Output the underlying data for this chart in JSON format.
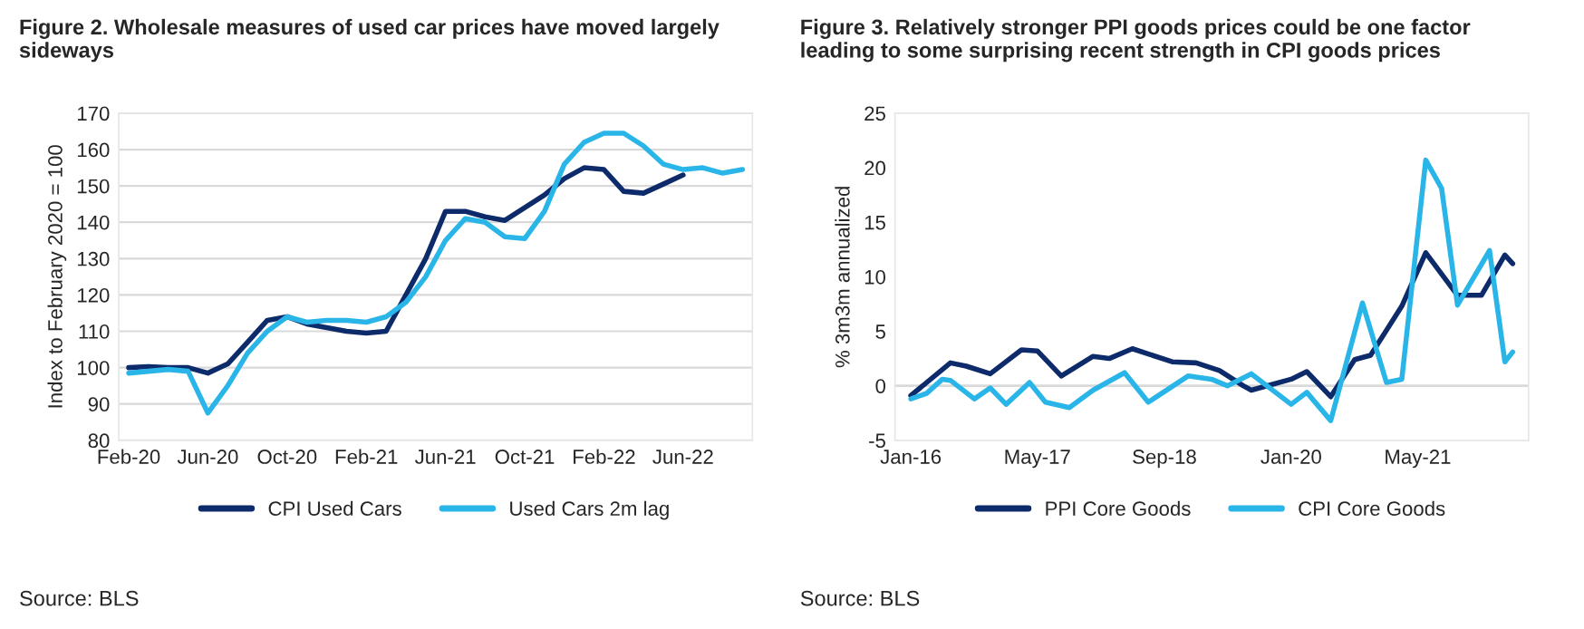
{
  "chart_data": [
    {
      "type": "line",
      "title": "Figure 2. Wholesale measures of used car prices have moved largely\nsideways",
      "ylabel": "Index to February 2020 = 100",
      "categories": [
        "Feb-20",
        null,
        null,
        null,
        "Jun-20",
        null,
        null,
        null,
        "Oct-20",
        null,
        null,
        null,
        "Feb-21",
        null,
        null,
        null,
        "Jun-21",
        null,
        null,
        null,
        "Oct-21",
        null,
        null,
        null,
        "Feb-22",
        null,
        null,
        null,
        "Jun-22",
        null,
        null,
        null
      ],
      "series": [
        {
          "name": "CPI Used Cars",
          "color": "#0d2b6b",
          "values": [
            100,
            100.3,
            100,
            100,
            98.5,
            101,
            107,
            113,
            114,
            112,
            111,
            110,
            109.5,
            110,
            120,
            130,
            143,
            143,
            141.5,
            140.5,
            144,
            147.5,
            152,
            155,
            154.5,
            148.5,
            148,
            150.5,
            153,
            null,
            null,
            null
          ]
        },
        {
          "name": "Used Cars 2m lag",
          "color": "#29b5e8",
          "values": [
            98.5,
            99,
            99.5,
            99,
            87.5,
            95,
            104,
            110,
            114,
            112.5,
            113,
            113,
            112.5,
            114,
            118,
            125,
            135,
            141,
            140,
            136,
            135.5,
            143,
            156,
            162,
            164.5,
            164.5,
            161,
            156,
            154.5,
            155,
            153.5,
            154.5
          ]
        }
      ],
      "ylim": [
        80,
        170
      ],
      "yticks": [
        80,
        90,
        100,
        110,
        120,
        130,
        140,
        150,
        160,
        170
      ],
      "grid": "y",
      "legend": "bottom",
      "annotations": [
        "Source: BLS"
      ]
    },
    {
      "type": "line",
      "title": "Figure 3. Relatively stronger PPI goods prices could be one factor\nleading to some surprising recent strength in CPI goods prices",
      "ylabel": "% 3m3m annualized",
      "series": [
        {
          "name": "PPI Core Goods",
          "color": "#0d2b6b",
          "x": [
            "2016-01",
            "2016-06",
            "2016-08",
            "2016-11",
            "2017-03",
            "2017-05",
            "2017-08",
            "2017-12",
            "2018-02",
            "2018-05",
            "2018-10",
            "2019-01",
            "2019-04",
            "2019-07",
            "2019-08",
            "2020-01",
            "2020-03",
            "2020-06",
            "2020-09",
            "2020-11",
            "2021-03",
            "2021-06",
            "2021-10",
            "2022-01",
            "2022-04",
            "2022-05"
          ],
          "values": [
            -0.9,
            2.1,
            1.8,
            1.1,
            3.3,
            3.2,
            0.9,
            2.7,
            2.5,
            3.4,
            2.2,
            2.1,
            1.4,
            0,
            -0.4,
            0.6,
            1.3,
            -1.0,
            2.4,
            2.8,
            7.3,
            12.2,
            8.3,
            8.3,
            12.0,
            11.2
          ]
        },
        {
          "name": "CPI Core Goods",
          "color": "#29b5e8",
          "x": [
            "2016-01",
            "2016-03",
            "2016-05",
            "2016-06",
            "2016-09",
            "2016-11",
            "2017-01",
            "2017-04",
            "2017-06",
            "2017-09",
            "2017-12",
            "2018-04",
            "2018-07",
            "2018-12",
            "2019-03",
            "2019-05",
            "2019-08",
            "2020-01",
            "2020-03",
            "2020-06",
            "2020-10",
            "2021-01",
            "2021-03",
            "2021-06",
            "2021-08",
            "2021-10",
            "2022-02",
            "2022-04",
            "2022-05"
          ],
          "values": [
            -1.2,
            -0.7,
            0.6,
            0.5,
            -1.2,
            -0.2,
            -1.7,
            0.3,
            -1.5,
            -2.0,
            -0.4,
            1.2,
            -1.5,
            0.9,
            0.6,
            0,
            1.1,
            -1.7,
            -0.6,
            -3.2,
            7.6,
            0.3,
            0.6,
            20.7,
            18.1,
            7.4,
            12.4,
            2.2,
            3.1
          ]
        }
      ],
      "xlim": [
        "2015-11",
        "2022-07"
      ],
      "xticks": [
        {
          "value": "2016-01",
          "label": "Jan-16"
        },
        {
          "value": "2017-05",
          "label": "May-17"
        },
        {
          "value": "2018-09",
          "label": "Sep-18"
        },
        {
          "value": "2020-01",
          "label": "Jan-20"
        },
        {
          "value": "2021-05",
          "label": "May-21"
        }
      ],
      "ylim": [
        -5,
        25
      ],
      "yticks": [
        -5,
        0,
        5,
        10,
        15,
        20,
        25
      ],
      "ref_lines": [
        {
          "axis": "y",
          "value": 0,
          "color": "#d9d9d9"
        }
      ],
      "legend": "bottom",
      "annotations": [
        "Source: BLS"
      ]
    }
  ]
}
